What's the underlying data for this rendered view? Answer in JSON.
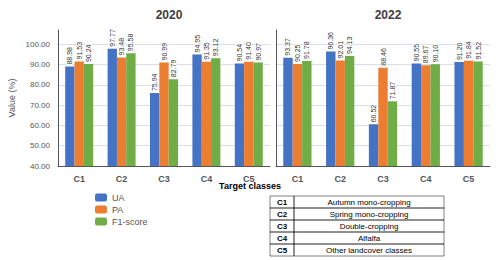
{
  "chart_data": [
    {
      "type": "bar",
      "title": "2020",
      "ylabel": "Value (%)",
      "categories": [
        "C1",
        "C2",
        "C3",
        "C4",
        "C5"
      ],
      "series": [
        {
          "name": "UA",
          "color": "#4472C4",
          "values": [
            88.98,
            97.77,
            75.94,
            94.95,
            90.54
          ],
          "value_labels": [
            "88.98",
            "97.77",
            "75.94",
            "94.95",
            "90.54"
          ]
        },
        {
          "name": "PA",
          "color": "#ED7D31",
          "values": [
            91.53,
            93.48,
            90.99,
            91.35,
            91.4
          ],
          "value_labels": [
            "91.53",
            "93.48",
            "90.99",
            "91.35",
            "91.40"
          ]
        },
        {
          "name": "F1-score",
          "color": "#70AD47",
          "values": [
            90.24,
            95.58,
            82.79,
            93.12,
            90.97
          ],
          "value_labels": [
            "90.24",
            "95.58",
            "82.79",
            "93.12",
            "90.97"
          ]
        }
      ],
      "ylim": [
        40.0,
        107.0
      ],
      "yticks": [
        {
          "value": 40,
          "label": "40.00"
        },
        {
          "value": 50,
          "label": "50.00"
        },
        {
          "value": 60,
          "label": "60.00"
        },
        {
          "value": 70,
          "label": "70.00"
        },
        {
          "value": 80,
          "label": "80.00"
        },
        {
          "value": 90,
          "label": "90.00"
        },
        {
          "value": 100,
          "label": "100.00"
        }
      ],
      "grid": true,
      "data_labels": true,
      "legend": "lower left"
    },
    {
      "type": "bar",
      "title": "2022",
      "categories": [
        "C1",
        "C2",
        "C3",
        "C4",
        "C5"
      ],
      "series": [
        {
          "name": "UA",
          "color": "#4472C4",
          "values": [
            93.37,
            96.36,
            60.52,
            90.55,
            91.2
          ],
          "value_labels": [
            "93.37",
            "96.36",
            "60.52",
            "90.55",
            "91.20"
          ]
        },
        {
          "name": "PA",
          "color": "#ED7D31",
          "values": [
            90.25,
            92.01,
            88.46,
            89.67,
            91.84
          ],
          "value_labels": [
            "90.25",
            "92.01",
            "88.46",
            "89.67",
            "91.84"
          ]
        },
        {
          "name": "F1-score",
          "color": "#70AD47",
          "values": [
            91.78,
            94.13,
            71.87,
            90.1,
            91.52
          ],
          "value_labels": [
            "91.78",
            "94.13",
            "71.87",
            "90.10",
            "91.52"
          ]
        }
      ],
      "ylim": [
        40.0,
        107.0
      ],
      "yticks": [
        40,
        50,
        60,
        70,
        80,
        90,
        100
      ],
      "grid": true,
      "data_labels": true,
      "tick_labels": "x"
    }
  ],
  "annotations": [
    "Target classes"
  ],
  "table": [
    [
      "C1",
      "Autumn mono-cropping"
    ],
    [
      "C2",
      "Spring mono-cropping"
    ],
    [
      "C3",
      "Double-cropping"
    ],
    [
      "C4",
      "Alfalfa"
    ],
    [
      "C5",
      "Other landcover classes"
    ]
  ]
}
